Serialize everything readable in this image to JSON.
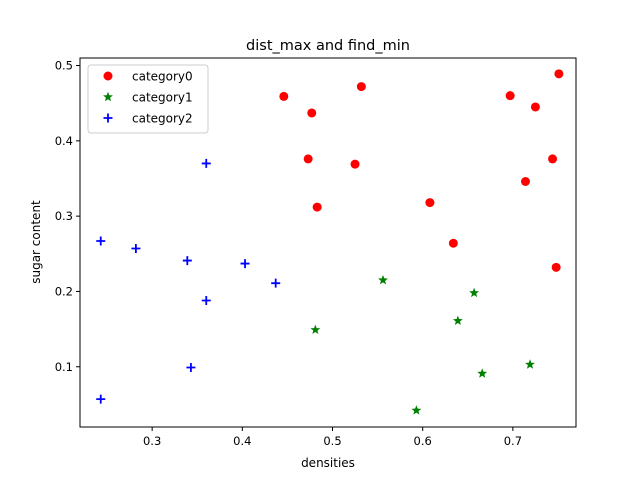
{
  "chart_data": {
    "type": "scatter",
    "title": "dist_max and find_min",
    "xlabel": "densities",
    "ylabel": "sugar content",
    "xlim": [
      0.22,
      0.77
    ],
    "ylim": [
      0.02,
      0.51
    ],
    "xticks": [
      0.3,
      0.4,
      0.5,
      0.6,
      0.7
    ],
    "xtick_labels": [
      "0.3",
      "0.4",
      "0.5",
      "0.6",
      "0.7"
    ],
    "yticks": [
      0.1,
      0.2,
      0.3,
      0.4,
      0.5
    ],
    "ytick_labels": [
      "0.1",
      "0.2",
      "0.3",
      "0.4",
      "0.5"
    ],
    "grid": false,
    "legend_position": "top-left",
    "series": [
      {
        "name": "category0",
        "marker": "circle",
        "color": "#ff0000",
        "points": [
          {
            "x": 0.446,
            "y": 0.459
          },
          {
            "x": 0.477,
            "y": 0.437
          },
          {
            "x": 0.532,
            "y": 0.472
          },
          {
            "x": 0.473,
            "y": 0.376
          },
          {
            "x": 0.525,
            "y": 0.369
          },
          {
            "x": 0.483,
            "y": 0.312
          },
          {
            "x": 0.608,
            "y": 0.318
          },
          {
            "x": 0.634,
            "y": 0.264
          },
          {
            "x": 0.697,
            "y": 0.46
          },
          {
            "x": 0.725,
            "y": 0.445
          },
          {
            "x": 0.751,
            "y": 0.489
          },
          {
            "x": 0.744,
            "y": 0.376
          },
          {
            "x": 0.714,
            "y": 0.346
          },
          {
            "x": 0.748,
            "y": 0.232
          }
        ]
      },
      {
        "name": "category1",
        "marker": "star",
        "color": "#008000",
        "points": [
          {
            "x": 0.556,
            "y": 0.215
          },
          {
            "x": 0.657,
            "y": 0.198
          },
          {
            "x": 0.481,
            "y": 0.149
          },
          {
            "x": 0.639,
            "y": 0.161
          },
          {
            "x": 0.719,
            "y": 0.103
          },
          {
            "x": 0.666,
            "y": 0.091
          },
          {
            "x": 0.593,
            "y": 0.042
          }
        ]
      },
      {
        "name": "category2",
        "marker": "plus",
        "color": "#0000ff",
        "points": [
          {
            "x": 0.243,
            "y": 0.267
          },
          {
            "x": 0.282,
            "y": 0.257
          },
          {
            "x": 0.339,
            "y": 0.241
          },
          {
            "x": 0.36,
            "y": 0.37
          },
          {
            "x": 0.403,
            "y": 0.237
          },
          {
            "x": 0.437,
            "y": 0.211
          },
          {
            "x": 0.36,
            "y": 0.188
          },
          {
            "x": 0.343,
            "y": 0.099
          },
          {
            "x": 0.243,
            "y": 0.057
          }
        ]
      }
    ]
  }
}
